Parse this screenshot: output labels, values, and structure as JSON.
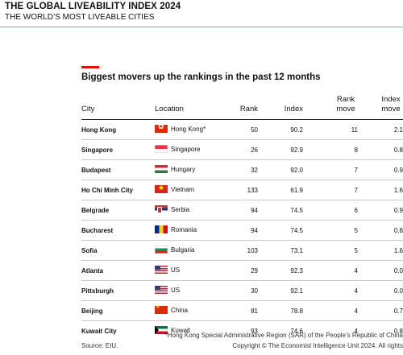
{
  "header": {
    "title": "THE GLOBAL LIVEABILITY INDEX 2024",
    "subtitle": "THE WORLD’S MOST LIVEABLE CITIES"
  },
  "section": {
    "title": "Biggest movers up the rankings in the past 12 months"
  },
  "table": {
    "columns": {
      "city": "City",
      "location": "Location",
      "rank": "Rank",
      "index": "Index",
      "rank_move": "Rank move",
      "index_move": "Index move"
    },
    "rows": [
      {
        "city": "Hong Kong",
        "flag": "hong-kong-flag",
        "location": "Hong Kong*",
        "rank": "50",
        "index": "90.2",
        "rank_move": "11",
        "index_move": "2.1"
      },
      {
        "city": "Singapore",
        "flag": "singapore-flag",
        "location": "Singapore",
        "rank": "26",
        "index": "92.9",
        "rank_move": "8",
        "index_move": "0.8"
      },
      {
        "city": "Budapest",
        "flag": "hungary-flag",
        "location": "Hungary",
        "rank": "32",
        "index": "92.0",
        "rank_move": "7",
        "index_move": "0.9"
      },
      {
        "city": "Ho Chi Minh City",
        "flag": "vietnam-flag",
        "location": "Vietnam",
        "rank": "133",
        "index": "61.9",
        "rank_move": "7",
        "index_move": "1.6"
      },
      {
        "city": "Belgrade",
        "flag": "serbia-flag",
        "location": "Serbia",
        "rank": "94",
        "index": "74.5",
        "rank_move": "6",
        "index_move": "0.9"
      },
      {
        "city": "Bucharest",
        "flag": "romania-flag",
        "location": "Romania",
        "rank": "94",
        "index": "74.5",
        "rank_move": "5",
        "index_move": "0.8"
      },
      {
        "city": "Sofia",
        "flag": "bulgaria-flag",
        "location": "Bulgaria",
        "rank": "103",
        "index": "73.1",
        "rank_move": "5",
        "index_move": "1.6"
      },
      {
        "city": "Atlanta",
        "flag": "us-flag",
        "location": "US",
        "rank": "29",
        "index": "92.3",
        "rank_move": "4",
        "index_move": "0.0"
      },
      {
        "city": "Pittsburgh",
        "flag": "us-flag",
        "location": "US",
        "rank": "30",
        "index": "92.1",
        "rank_move": "4",
        "index_move": "0.0"
      },
      {
        "city": "Beijing",
        "flag": "china-flag",
        "location": "China",
        "rank": "81",
        "index": "78.8",
        "rank_move": "4",
        "index_move": "0.7"
      },
      {
        "city": "Kuwait City",
        "flag": "kuwait-flag",
        "location": "Kuwait",
        "rank": "93",
        "index": "74.6",
        "rank_move": "4",
        "index_move": "0.8"
      }
    ]
  },
  "footer": {
    "note": "*Hong Kong Special Administrative Region (SAR) of the People’s Republic of China",
    "source": "Source: EIU.",
    "copyright": "Copyright © The Economist Intelligence Unit 2024. All rights"
  },
  "colors": {
    "accent_red": "#e3120b",
    "header_rule": "#6fa8b8"
  }
}
